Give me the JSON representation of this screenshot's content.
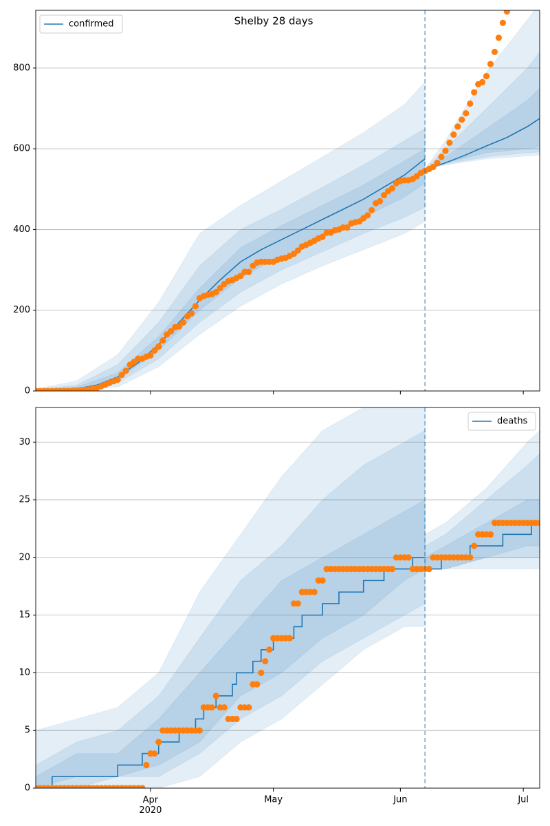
{
  "chart_data": [
    {
      "type": "line",
      "title": "Shelby 28 days",
      "legend": "upper left",
      "grid": true,
      "xlim": [
        0,
        123
      ],
      "ylim": [
        0,
        943
      ],
      "yticks": [
        0,
        200,
        400,
        600,
        800
      ],
      "vline": 95,
      "band_color": "#1f77b4",
      "band_opacity": 0.12,
      "series": [
        {
          "name": "confirmed",
          "color": "#1f77b4",
          "drawstyle": "default",
          "x": [
            0,
            5,
            10,
            15,
            20,
            25,
            30,
            35,
            40,
            45,
            50,
            55,
            60,
            65,
            70,
            75,
            80,
            85,
            90,
            95
          ],
          "values": [
            0,
            1,
            5,
            15,
            35,
            70,
            115,
            170,
            225,
            275,
            320,
            350,
            375,
            400,
            425,
            450,
            475,
            505,
            535,
            575
          ]
        }
      ],
      "forecast": {
        "x": [
          95,
          100,
          105,
          110,
          115,
          120,
          123
        ],
        "values": [
          548,
          565,
          585,
          607,
          628,
          655,
          675
        ]
      },
      "bands": [
        {
          "x": [
            0,
            10,
            20,
            30,
            40,
            50,
            60,
            70,
            80,
            90,
            95
          ],
          "ranges": [
            {
              "lower": [
                0,
                0,
                10,
                60,
                140,
                210,
                265,
                310,
                350,
                390,
                420
              ],
              "upper": [
                5,
                25,
                90,
                220,
                390,
                460,
                520,
                580,
                640,
                710,
                765
              ]
            },
            {
              "lower": [
                0,
                1,
                20,
                80,
                170,
                245,
                300,
                345,
                390,
                430,
                455
              ],
              "upper": [
                3,
                15,
                65,
                170,
                310,
                400,
                450,
                505,
                560,
                620,
                650
              ]
            },
            {
              "lower": [
                0,
                3,
                28,
                100,
                200,
                280,
                335,
                385,
                430,
                480,
                515
              ],
              "upper": [
                1,
                10,
                45,
                135,
                255,
                355,
                410,
                460,
                510,
                570,
                600
              ]
            }
          ]
        },
        {
          "x": [
            95,
            100,
            110,
            120,
            123
          ],
          "ranges": [
            {
              "lower": [
                550,
                560,
                575,
                582,
                585
              ],
              "upper": [
                550,
                620,
                790,
                920,
                960
              ]
            },
            {
              "lower": [
                550,
                562,
                580,
                590,
                592
              ],
              "upper": [
                550,
                600,
                700,
                800,
                840
              ]
            },
            {
              "lower": [
                550,
                565,
                590,
                600,
                605
              ],
              "upper": [
                550,
                580,
                650,
                720,
                750
              ]
            }
          ]
        }
      ],
      "observed": {
        "color": "#ff7f0e",
        "x": [
          0,
          1,
          2,
          3,
          4,
          5,
          6,
          7,
          8,
          9,
          10,
          11,
          12,
          13,
          14,
          15,
          16,
          17,
          18,
          19,
          20,
          21,
          22,
          23,
          24,
          25,
          26,
          27,
          28,
          29,
          30,
          31,
          32,
          33,
          34,
          35,
          36,
          37,
          38,
          39,
          40,
          41,
          42,
          43,
          44,
          45,
          46,
          47,
          48,
          49,
          50,
          51,
          52,
          53,
          54,
          55,
          56,
          57,
          58,
          59,
          60,
          61,
          62,
          63,
          64,
          65,
          66,
          67,
          68,
          69,
          70,
          71,
          72,
          73,
          74,
          75,
          76,
          77,
          78,
          79,
          80,
          81,
          82,
          83,
          84,
          85,
          86,
          87,
          88,
          89,
          90,
          91,
          92,
          93,
          94,
          95,
          96,
          97,
          98,
          99,
          100,
          101,
          102,
          103,
          104,
          105,
          106,
          107,
          108,
          109,
          110,
          111,
          112,
          113,
          114,
          115
        ],
        "values": [
          0,
          0,
          0,
          0,
          0,
          0,
          0,
          0,
          0,
          1,
          1,
          2,
          3,
          4,
          6,
          8,
          12,
          16,
          20,
          24,
          28,
          40,
          50,
          65,
          72,
          80,
          80,
          85,
          88,
          100,
          110,
          125,
          140,
          148,
          158,
          160,
          170,
          185,
          192,
          210,
          230,
          235,
          238,
          240,
          245,
          255,
          265,
          272,
          275,
          280,
          285,
          295,
          295,
          310,
          318,
          320,
          320,
          320,
          320,
          325,
          328,
          330,
          335,
          340,
          348,
          358,
          362,
          367,
          372,
          378,
          382,
          392,
          392,
          398,
          400,
          405,
          405,
          415,
          418,
          420,
          428,
          435,
          448,
          465,
          470,
          485,
          495,
          502,
          515,
          520,
          522,
          522,
          525,
          532,
          540,
          545,
          550,
          555,
          565,
          580,
          595,
          615,
          635,
          655,
          672,
          688,
          712,
          740,
          760,
          765,
          780,
          810,
          840,
          875,
          912,
          940
        ]
      }
    },
    {
      "type": "line",
      "legend": "upper right",
      "grid": true,
      "xlim": [
        0,
        123
      ],
      "ylim": [
        0,
        33
      ],
      "yticks": [
        0,
        5,
        10,
        15,
        20,
        25,
        30
      ],
      "vline": 95,
      "xticks": [
        {
          "value": 28,
          "label": "Apr\n2020"
        },
        {
          "value": 58,
          "label": "May"
        },
        {
          "value": 89,
          "label": "Jun"
        },
        {
          "value": 119,
          "label": "Jul"
        }
      ],
      "band_color": "#1f77b4",
      "band_opacity": 0.12,
      "series": [
        {
          "name": "deaths",
          "color": "#1f77b4",
          "drawstyle": "steps-post",
          "x": [
            0,
            4,
            20,
            26,
            30,
            35,
            39,
            41,
            44,
            48,
            49,
            53,
            55,
            58,
            63,
            65,
            70,
            74,
            80,
            85,
            92,
            95
          ],
          "values": [
            0,
            1,
            2,
            3,
            4,
            5,
            6,
            7,
            8,
            9,
            10,
            11,
            12,
            13,
            14,
            15,
            16,
            17,
            18,
            19,
            20,
            20
          ]
        }
      ],
      "forecast": {
        "x": [
          95,
          99,
          106,
          114,
          121,
          123
        ],
        "values": [
          19,
          20,
          21,
          22,
          23,
          23
        ]
      },
      "bands": [
        {
          "x": [
            0,
            10,
            20,
            30,
            40,
            50,
            60,
            70,
            80,
            90,
            95
          ],
          "ranges": [
            {
              "lower": [
                0,
                0,
                0,
                0,
                1,
                4,
                6,
                9,
                12,
                14,
                14
              ],
              "upper": [
                5,
                6,
                7,
                10,
                17,
                22,
                27,
                31,
                33,
                34,
                34
              ]
            },
            {
              "lower": [
                0,
                0,
                1,
                1,
                3,
                6,
                8,
                11,
                13,
                15,
                16
              ],
              "upper": [
                2,
                4,
                5,
                8,
                13,
                18,
                21,
                25,
                28,
                30,
                31
              ]
            },
            {
              "lower": [
                0,
                1,
                1,
                2,
                4,
                8,
                10,
                13,
                15,
                18,
                19
              ],
              "upper": [
                1,
                3,
                3,
                6,
                10,
                14,
                18,
                20,
                22,
                24,
                25
              ]
            }
          ]
        },
        {
          "x": [
            95,
            100,
            110,
            120,
            123
          ],
          "ranges": [
            {
              "lower": [
                19,
                19,
                19,
                19,
                19
              ],
              "upper": [
                22,
                23,
                26,
                30,
                31
              ]
            },
            {
              "lower": [
                19,
                19,
                20,
                20,
                20
              ],
              "upper": [
                21,
                22,
                25,
                28,
                29
              ]
            },
            {
              "lower": [
                19,
                19,
                20,
                21,
                21
              ],
              "upper": [
                20,
                21,
                23,
                25,
                25
              ]
            }
          ]
        }
      ],
      "observed": {
        "color": "#ff7f0e",
        "x": [
          0,
          1,
          2,
          3,
          4,
          5,
          6,
          7,
          8,
          9,
          10,
          11,
          12,
          13,
          14,
          15,
          16,
          17,
          18,
          19,
          20,
          21,
          22,
          23,
          24,
          25,
          26,
          27,
          28,
          29,
          30,
          31,
          32,
          33,
          34,
          35,
          36,
          37,
          38,
          39,
          40,
          41,
          42,
          43,
          44,
          45,
          46,
          47,
          48,
          49,
          50,
          51,
          52,
          53,
          54,
          55,
          56,
          57,
          58,
          59,
          60,
          61,
          62,
          63,
          64,
          65,
          66,
          67,
          68,
          69,
          70,
          71,
          72,
          73,
          74,
          75,
          76,
          77,
          78,
          79,
          80,
          81,
          82,
          83,
          84,
          85,
          86,
          87,
          88,
          89,
          90,
          91,
          92,
          93,
          94,
          95,
          96,
          97,
          98,
          99,
          100,
          101,
          102,
          103,
          104,
          105,
          106,
          107,
          108,
          109,
          110,
          111,
          112,
          113,
          114,
          115,
          116,
          117,
          118,
          119,
          120,
          121,
          122,
          123
        ],
        "values": [
          0,
          0,
          0,
          0,
          0,
          0,
          0,
          0,
          0,
          0,
          0,
          0,
          0,
          0,
          0,
          0,
          0,
          0,
          0,
          0,
          0,
          0,
          0,
          0,
          0,
          0,
          0,
          2,
          3,
          3,
          4,
          5,
          5,
          5,
          5,
          5,
          5,
          5,
          5,
          5,
          5,
          7,
          7,
          7,
          8,
          7,
          7,
          6,
          6,
          6,
          7,
          7,
          7,
          9,
          9,
          10,
          11,
          12,
          13,
          13,
          13,
          13,
          13,
          16,
          16,
          17,
          17,
          17,
          17,
          18,
          18,
          19,
          19,
          19,
          19,
          19,
          19,
          19,
          19,
          19,
          19,
          19,
          19,
          19,
          19,
          19,
          19,
          19,
          20,
          20,
          20,
          20,
          19,
          19,
          19,
          19,
          19,
          20,
          20,
          20,
          20,
          20,
          20,
          20,
          20,
          20,
          20,
          21,
          22,
          22,
          22,
          22,
          23,
          23,
          23,
          23,
          23,
          23,
          23,
          23,
          23,
          23,
          23,
          23
        ]
      }
    }
  ]
}
